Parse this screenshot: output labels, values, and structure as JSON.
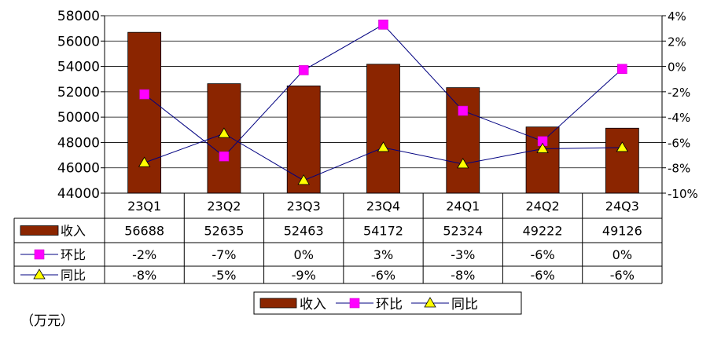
{
  "chart_data": {
    "type": "bar",
    "categories": [
      "23Q1",
      "23Q2",
      "23Q3",
      "23Q4",
      "24Q1",
      "24Q2",
      "24Q3"
    ],
    "series": [
      {
        "name": "收入",
        "kind": "bar",
        "axis": "left",
        "values": [
          56688,
          52635,
          52463,
          54172,
          52324,
          49222,
          49126
        ],
        "labels": [
          "56688",
          "52635",
          "52463",
          "54172",
          "52324",
          "49222",
          "49126"
        ]
      },
      {
        "name": "环比",
        "kind": "line",
        "axis": "right",
        "values": [
          -2.2,
          -7.1,
          -0.3,
          3.3,
          -3.5,
          -5.9,
          -0.2
        ],
        "labels": [
          "-2%",
          "-7%",
          "0%",
          "3%",
          "-3%",
          "-6%",
          "0%"
        ]
      },
      {
        "name": "同比",
        "kind": "line",
        "axis": "right",
        "values": [
          -7.6,
          -5.3,
          -9.0,
          -6.4,
          -7.7,
          -6.5,
          -6.4
        ],
        "labels": [
          "-8%",
          "-5%",
          "-9%",
          "-6%",
          "-8%",
          "-6%",
          "-6%"
        ]
      }
    ],
    "left_axis": {
      "min": 44000,
      "max": 58000,
      "step": 2000,
      "ticks": [
        "44000",
        "46000",
        "48000",
        "50000",
        "52000",
        "54000",
        "56000",
        "58000"
      ]
    },
    "right_axis": {
      "min": -10,
      "max": 4,
      "step": 2,
      "ticks": [
        "-10%",
        "-8%",
        "-6%",
        "-4%",
        "-2%",
        "0%",
        "2%",
        "4%"
      ]
    },
    "unit_label": "（万元）",
    "legend_position": "bottom",
    "colors": {
      "bar": "#8B2500",
      "line_qoq": "#000080",
      "marker_qoq": "#FF00FF",
      "line_yoy": "#000080",
      "marker_yoy": "#FFFF00",
      "grid": "#000000"
    }
  }
}
